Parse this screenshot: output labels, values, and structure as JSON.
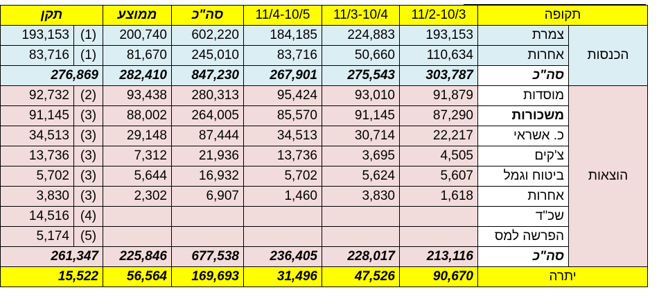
{
  "header": {
    "period_label": "תקופה",
    "col1": "11/2-10/3",
    "col2": "11/3-10/4",
    "col3": "11/4-10/5",
    "total": "סה\"כ",
    "average": "ממוצע",
    "norm": "תקן"
  },
  "income": {
    "category": "הכנסות",
    "rows": [
      {
        "label": "צמרת",
        "v1": "193,153",
        "v2": "224,883",
        "v3": "184,185",
        "total": "602,220",
        "avg": "200,740",
        "fn": "(1)",
        "norm": "193,153"
      },
      {
        "label": "אחרות",
        "v1": "110,634",
        "v2": "50,660",
        "v3": "83,716",
        "total": "245,010",
        "avg": "81,670",
        "fn": "(1)",
        "norm": "83,716"
      }
    ],
    "sum": {
      "label": "סה\"כ",
      "v1": "303,787",
      "v2": "275,543",
      "v3": "267,901",
      "total": "847,230",
      "avg": "282,410",
      "norm": "276,869"
    }
  },
  "expenses": {
    "category": "הוצאות",
    "rows": [
      {
        "label": "מוסדות",
        "v1": "91,879",
        "v2": "93,010",
        "v3": "95,424",
        "total": "280,313",
        "avg": "93,438",
        "fn": "(2)",
        "norm": "92,732"
      },
      {
        "label": "משכורות",
        "v1": "87,290",
        "v2": "91,145",
        "v3": "85,570",
        "total": "264,005",
        "avg": "88,002",
        "fn": "(3)",
        "norm": "91,145"
      },
      {
        "label": "כ. אשראי",
        "v1": "22,217",
        "v2": "30,714",
        "v3": "34,513",
        "total": "87,444",
        "avg": "29,148",
        "fn": "(3)",
        "norm": "34,513"
      },
      {
        "label": "צ'קים",
        "v1": "4,505",
        "v2": "3,695",
        "v3": "13,736",
        "total": "21,936",
        "avg": "7,312",
        "fn": "(3)",
        "norm": "13,736"
      },
      {
        "label": "ביטוח וגמל",
        "v1": "5,607",
        "v2": "5,624",
        "v3": "5,702",
        "total": "16,932",
        "avg": "5,644",
        "fn": "(3)",
        "norm": "5,702"
      },
      {
        "label": "אחרות",
        "v1": "1,618",
        "v2": "3,830",
        "v3": "1,460",
        "total": "6,907",
        "avg": "2,302",
        "fn": "(3)",
        "norm": "3,830"
      },
      {
        "label": "שכ\"ד",
        "v1": "",
        "v2": "",
        "v3": "",
        "total": "",
        "avg": "",
        "fn": "(4)",
        "norm": "14,516"
      },
      {
        "label": "הפרשה למס",
        "v1": "",
        "v2": "",
        "v3": "",
        "total": "",
        "avg": "",
        "fn": "(5)",
        "norm": "5,174"
      }
    ],
    "sum": {
      "label": "סה\"כ",
      "v1": "213,116",
      "v2": "228,017",
      "v3": "236,405",
      "total": "677,538",
      "avg": "225,846",
      "norm": "261,347"
    }
  },
  "balance": {
    "label": "יתרה",
    "v1": "90,670",
    "v2": "47,526",
    "v3": "31,496",
    "total": "169,693",
    "avg": "56,564",
    "norm": "15,522"
  },
  "colors": {
    "yellow": "#ffff00",
    "light_blue": "#dbeef4",
    "light_pink": "#f2dcdb"
  }
}
